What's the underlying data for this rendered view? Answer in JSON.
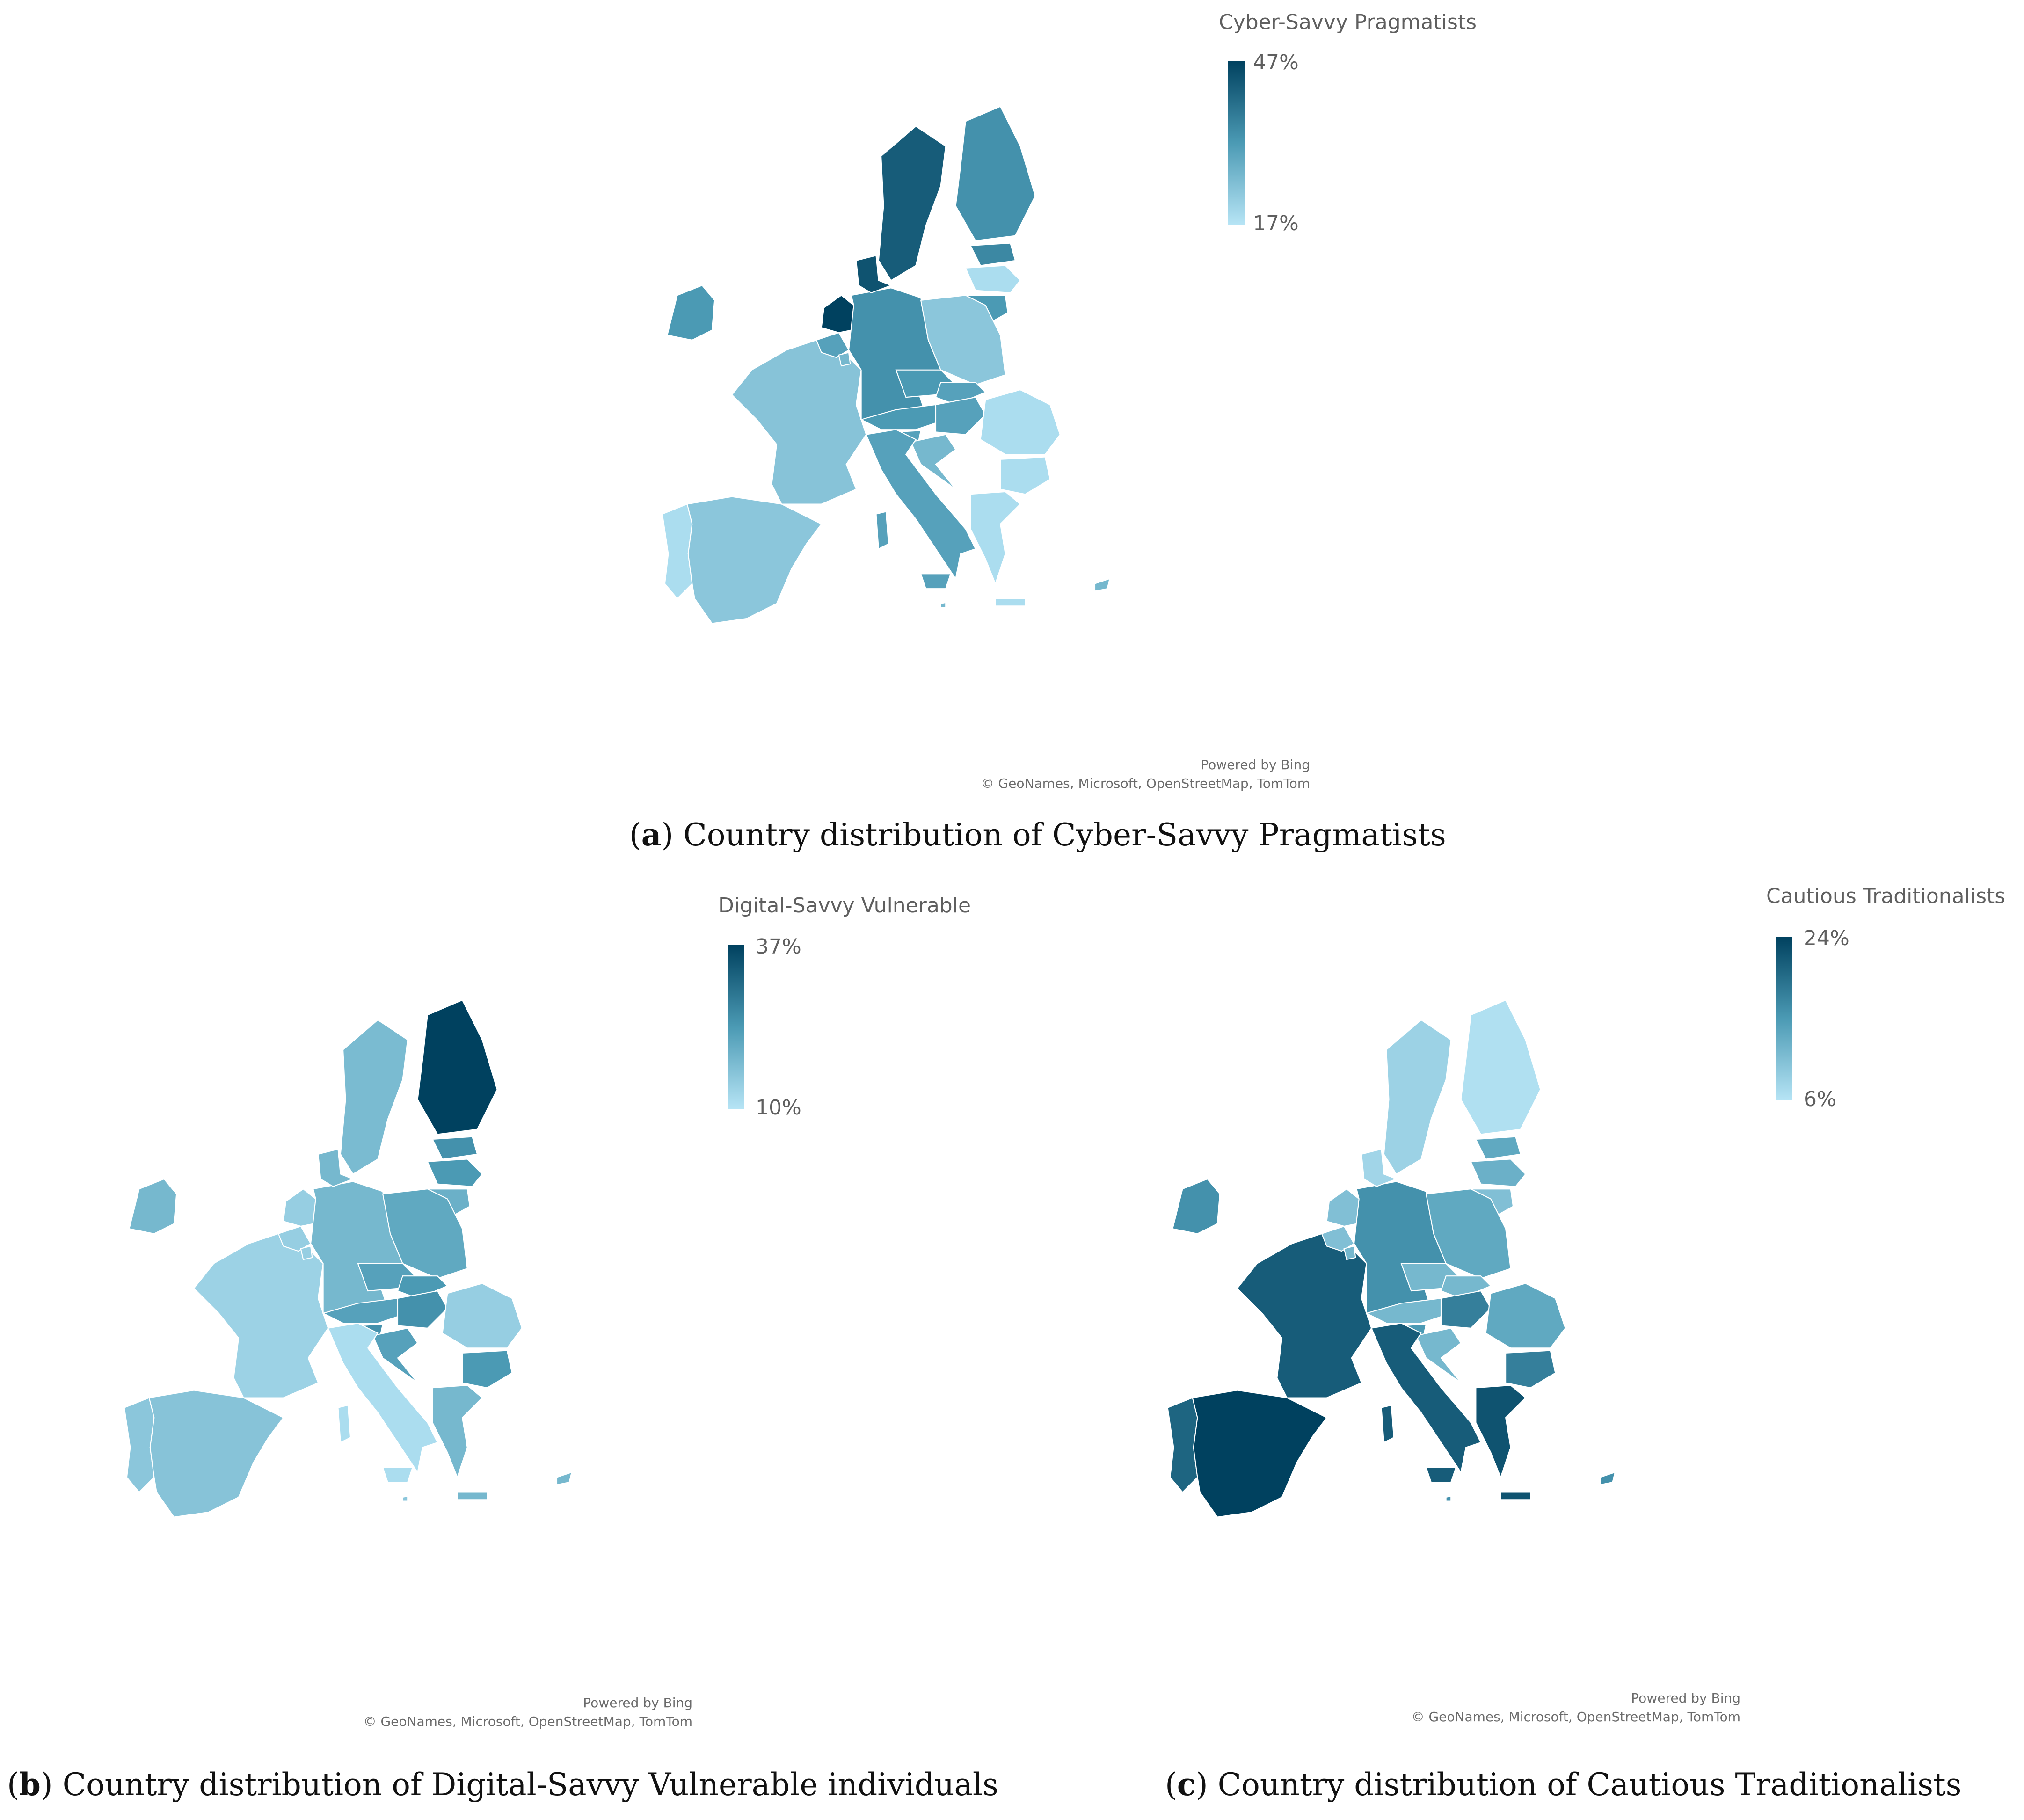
{
  "colors": {
    "dark": "#00415f",
    "mid": "#4b9ab4",
    "light": "#b6e4f5",
    "border": "#ffffff"
  },
  "maps": [
    {
      "id": "a",
      "legend": {
        "title": "Cyber-Savvy Pragmatists",
        "max": "47%",
        "min": "17%"
      },
      "attribution": {
        "line1": "Powered by Bing",
        "line2": "© GeoNames, Microsoft, OpenStreetMap, TomTom"
      },
      "caption": {
        "letter": "a",
        "text": " Country distribution of Cyber-Savvy Pragmatists"
      },
      "country_shade": {
        "Portugal": 0.05,
        "Spain": 0.2,
        "France": 0.22,
        "Ireland": 0.5,
        "Belgium": 0.45,
        "Netherlands": 1.0,
        "Luxembourg": 0.3,
        "Germany": 0.55,
        "Denmark": 0.9,
        "Sweden": 0.85,
        "Finland": 0.55,
        "Estonia": 0.6,
        "Latvia": 0.05,
        "Lithuania": 0.5,
        "Poland": 0.2,
        "Czechia": 0.5,
        "Slovakia": 0.45,
        "Austria": 0.5,
        "Hungary": 0.45,
        "Slovenia": 0.45,
        "Croatia": 0.3,
        "Italy": 0.45,
        "Romania": 0.05,
        "Bulgaria": 0.05,
        "Greece": 0.05,
        "Cyprus": 0.3,
        "Malta": 0.3
      }
    },
    {
      "id": "b",
      "legend": {
        "title": "Digital-Savvy Vulnerable",
        "max": "37%",
        "min": "10%"
      },
      "attribution": {
        "line1": "Powered by Bing",
        "line2": "© GeoNames, Microsoft, OpenStreetMap, TomTom"
      },
      "caption": {
        "letter": "b",
        "text": " Country distribution of Digital-Savvy Vulnerable individuals"
      },
      "country_shade": {
        "Portugal": 0.2,
        "Spain": 0.22,
        "France": 0.12,
        "Ireland": 0.3,
        "Belgium": 0.15,
        "Netherlands": 0.15,
        "Luxembourg": 0.15,
        "Germany": 0.3,
        "Denmark": 0.3,
        "Sweden": 0.28,
        "Finland": 1.0,
        "Estonia": 0.55,
        "Latvia": 0.5,
        "Lithuania": 0.35,
        "Poland": 0.4,
        "Czechia": 0.45,
        "Slovakia": 0.5,
        "Austria": 0.45,
        "Hungary": 0.55,
        "Slovenia": 0.55,
        "Croatia": 0.45,
        "Italy": 0.05,
        "Romania": 0.15,
        "Bulgaria": 0.5,
        "Greece": 0.3,
        "Cyprus": 0.3,
        "Malta": 0.2
      }
    },
    {
      "id": "c",
      "legend": {
        "title": "Cautious Traditionalists",
        "max": "24%",
        "min": "6%"
      },
      "attribution": {
        "line1": "Powered by Bing",
        "line2": "© GeoNames, Microsoft, OpenStreetMap, TomTom"
      },
      "caption": {
        "letter": "c",
        "text": " Country distribution of Cautious Traditionalists"
      },
      "country_shade": {
        "Portugal": 0.8,
        "Spain": 1.0,
        "France": 0.85,
        "Ireland": 0.55,
        "Belgium": 0.25,
        "Netherlands": 0.25,
        "Luxembourg": 0.3,
        "Germany": 0.55,
        "Denmark": 0.1,
        "Sweden": 0.12,
        "Finland": 0.03,
        "Estonia": 0.4,
        "Latvia": 0.35,
        "Lithuania": 0.25,
        "Poland": 0.4,
        "Czechia": 0.3,
        "Slovakia": 0.3,
        "Austria": 0.3,
        "Hungary": 0.65,
        "Slovenia": 0.5,
        "Croatia": 0.3,
        "Italy": 0.85,
        "Romania": 0.4,
        "Bulgaria": 0.65,
        "Greece": 0.9,
        "Cyprus": 0.55,
        "Malta": 0.55
      }
    }
  ]
}
